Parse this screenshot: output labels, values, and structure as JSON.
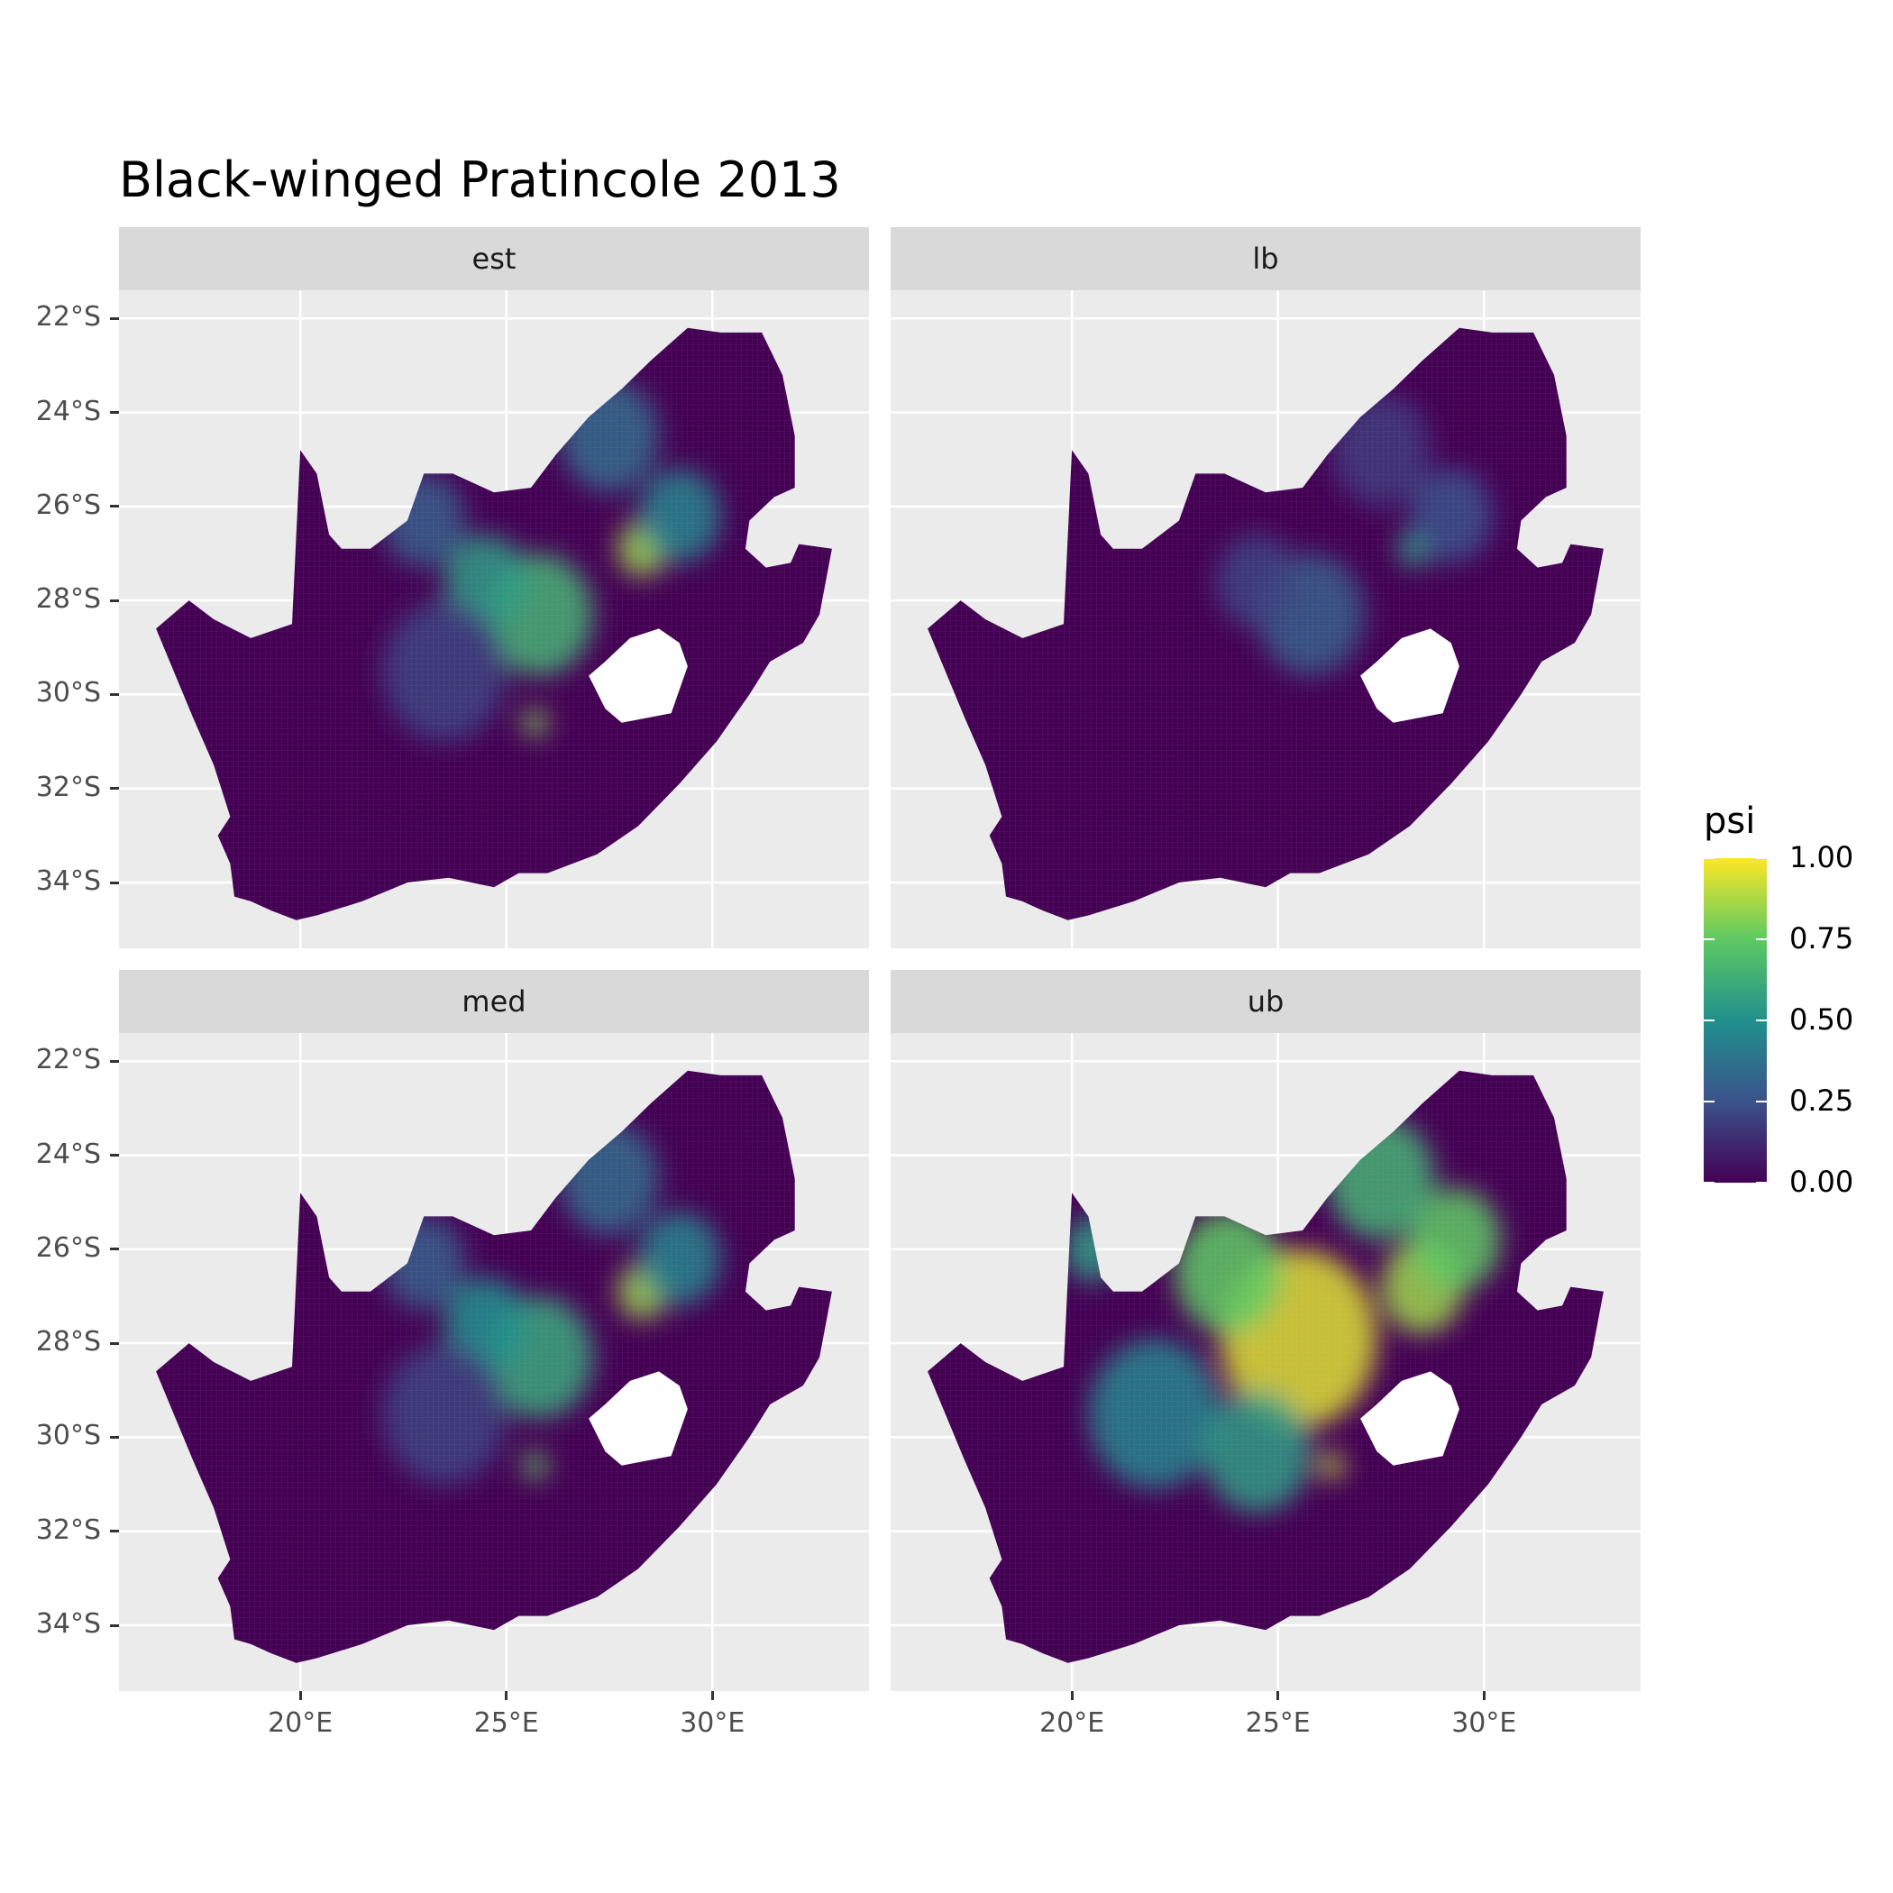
{
  "title": "Black-winged Pratincole 2013",
  "chart_data": {
    "type": "heatmap",
    "title": "Black-winged Pratincole 2013",
    "facets": [
      "est",
      "lb",
      "med",
      "ub"
    ],
    "x_axis": {
      "ticks": [
        20,
        25,
        30
      ],
      "tick_labels": [
        "20°E",
        "25°E",
        "30°E"
      ],
      "range": [
        15.6,
        33.8
      ]
    },
    "y_axis": {
      "ticks": [
        -22,
        -24,
        -26,
        -28,
        -30,
        -32,
        -34
      ],
      "tick_labels": [
        "22°S",
        "24°S",
        "26°S",
        "28°S",
        "30°S",
        "32°S",
        "34°S"
      ],
      "range": [
        -35.4,
        -21.4
      ]
    },
    "legend": {
      "title": "psi",
      "position": "right",
      "ticks": [
        1.0,
        0.75,
        0.5,
        0.25,
        0.0
      ],
      "tick_labels": [
        "1.00",
        "0.75",
        "0.50",
        "0.25",
        "0.00"
      ],
      "colormap": "viridis"
    },
    "hotspots": {
      "est": [
        {
          "lon": 25.8,
          "lat": -28.3,
          "psi": 0.65,
          "r": 1.3
        },
        {
          "lon": 24.5,
          "lat": -27.6,
          "psi": 0.55,
          "r": 1.0
        },
        {
          "lon": 28.3,
          "lat": -26.9,
          "psi": 0.85,
          "r": 0.6
        },
        {
          "lon": 29.2,
          "lat": -26.2,
          "psi": 0.45,
          "r": 1.0
        },
        {
          "lon": 27.5,
          "lat": -24.5,
          "psi": 0.35,
          "r": 1.2
        },
        {
          "lon": 23.0,
          "lat": -26.3,
          "psi": 0.3,
          "r": 1.0
        },
        {
          "lon": 25.7,
          "lat": -30.6,
          "psi": 0.8,
          "r": 0.3
        },
        {
          "lon": 23.5,
          "lat": -29.5,
          "psi": 0.2,
          "r": 1.5
        }
      ],
      "lb": [
        {
          "lon": 25.8,
          "lat": -28.3,
          "psi": 0.3,
          "r": 1.3
        },
        {
          "lon": 28.3,
          "lat": -26.9,
          "psi": 0.55,
          "r": 0.4
        },
        {
          "lon": 29.2,
          "lat": -26.2,
          "psi": 0.25,
          "r": 1.0
        },
        {
          "lon": 27.5,
          "lat": -24.8,
          "psi": 0.18,
          "r": 1.2
        },
        {
          "lon": 24.5,
          "lat": -27.6,
          "psi": 0.2,
          "r": 1.0
        }
      ],
      "med": [
        {
          "lon": 25.8,
          "lat": -28.3,
          "psi": 0.6,
          "r": 1.3
        },
        {
          "lon": 24.5,
          "lat": -27.6,
          "psi": 0.5,
          "r": 1.0
        },
        {
          "lon": 28.3,
          "lat": -26.9,
          "psi": 0.85,
          "r": 0.6
        },
        {
          "lon": 29.2,
          "lat": -26.2,
          "psi": 0.45,
          "r": 1.0
        },
        {
          "lon": 27.5,
          "lat": -24.5,
          "psi": 0.35,
          "r": 1.2
        },
        {
          "lon": 23.0,
          "lat": -26.3,
          "psi": 0.3,
          "r": 1.0
        },
        {
          "lon": 25.7,
          "lat": -30.6,
          "psi": 0.75,
          "r": 0.3
        },
        {
          "lon": 23.5,
          "lat": -29.5,
          "psi": 0.2,
          "r": 1.5
        }
      ],
      "ub": [
        {
          "lon": 25.5,
          "lat": -27.9,
          "psi": 0.95,
          "r": 1.9
        },
        {
          "lon": 23.8,
          "lat": -26.5,
          "psi": 0.75,
          "r": 1.3
        },
        {
          "lon": 28.5,
          "lat": -26.8,
          "psi": 0.85,
          "r": 1.0
        },
        {
          "lon": 29.3,
          "lat": -25.8,
          "psi": 0.75,
          "r": 1.1
        },
        {
          "lon": 27.5,
          "lat": -24.5,
          "psi": 0.65,
          "r": 1.3
        },
        {
          "lon": 22.0,
          "lat": -29.5,
          "psi": 0.45,
          "r": 1.6
        },
        {
          "lon": 24.5,
          "lat": -30.3,
          "psi": 0.55,
          "r": 1.3
        },
        {
          "lon": 20.5,
          "lat": -26.0,
          "psi": 0.55,
          "r": 0.7
        },
        {
          "lon": 26.3,
          "lat": -30.6,
          "psi": 0.9,
          "r": 0.3
        }
      ]
    }
  },
  "colors": {
    "panel_bg": "#ebebeb",
    "strip_bg": "#d9d9d9",
    "grid": "#ffffff",
    "base_fill": "#440154"
  }
}
